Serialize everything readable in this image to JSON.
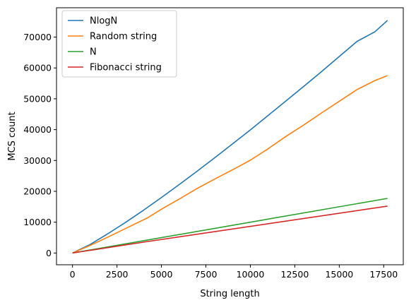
{
  "chart_data": {
    "type": "line",
    "title": "",
    "xlabel": "String length",
    "ylabel": "MCS count",
    "xlim": [
      -900,
      18600
    ],
    "ylim": [
      -3800,
      79500
    ],
    "xticks": [
      0,
      2500,
      5000,
      7500,
      10000,
      12500,
      15000,
      17500
    ],
    "yticks": [
      0,
      10000,
      20000,
      30000,
      40000,
      50000,
      60000,
      70000
    ],
    "grid": false,
    "legend_position": "top-left",
    "series": [
      {
        "name": "NlogN",
        "color": "#1f77b4",
        "x": [
          0,
          1000,
          2000,
          3000,
          4000,
          5000,
          6000,
          7000,
          8000,
          9000,
          10000,
          11000,
          12000,
          13000,
          14000,
          15000,
          16000,
          17000,
          17711
        ],
        "y": [
          0,
          2800,
          6300,
          10000,
          13900,
          18000,
          22200,
          26500,
          30900,
          35400,
          39900,
          44600,
          49300,
          54000,
          58800,
          63700,
          68600,
          71700,
          75400
        ]
      },
      {
        "name": "Random string",
        "color": "#ff7f0e",
        "x": [
          0,
          1000,
          2000,
          3000,
          4181,
          5000,
          6000,
          7000,
          8000,
          9000,
          10000,
          10946,
          12000,
          13000,
          14000,
          15000,
          16000,
          17000,
          17711
        ],
        "y": [
          0,
          2500,
          5200,
          8000,
          11300,
          14200,
          17500,
          20900,
          24000,
          27000,
          30100,
          33600,
          37800,
          41500,
          45400,
          49200,
          53000,
          55900,
          57500
        ]
      },
      {
        "name": "N",
        "color": "#2ca02c",
        "x": [
          0,
          17711
        ],
        "y": [
          0,
          17711
        ]
      },
      {
        "name": "Fibonacci string",
        "color": "#d62728",
        "x": [
          0,
          4181,
          17711
        ],
        "y": [
          0,
          3700,
          15200
        ]
      }
    ]
  }
}
